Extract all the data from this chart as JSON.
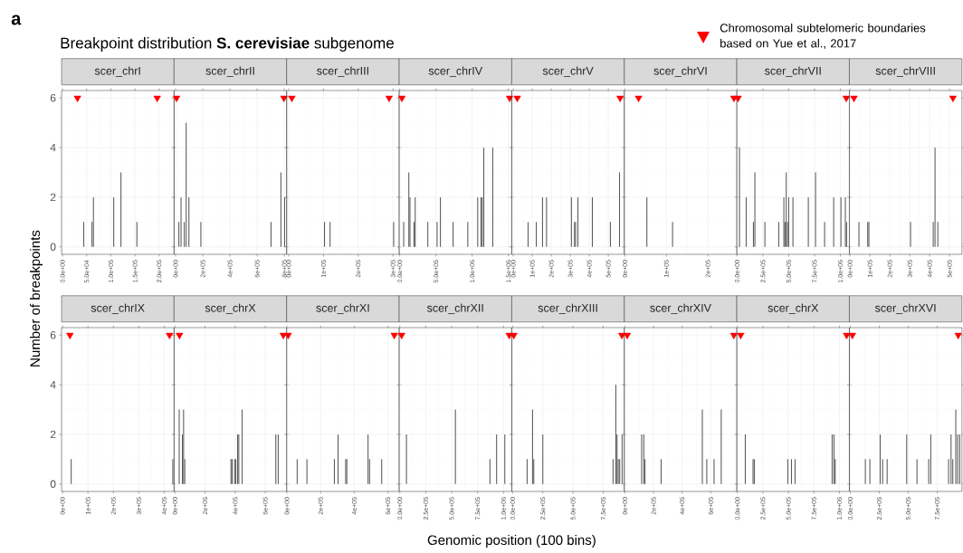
{
  "chart_data": [
    {
      "type": "bar",
      "title": "scer_chrI",
      "annotations": [
        "a",
        "Breakpoint distribution **S. cerevisiae** subgenome"
      ],
      "ylabel": "Number of breakpoints",
      "legend": "top right",
      "grid": true,
      "xlim": [
        -2000,
        231000
      ],
      "ylim": [
        -0.3,
        6.3
      ],
      "yticks": [
        0,
        2,
        4,
        6
      ],
      "xticks": [
        {
          "value": 0,
          "label": "0.0e+00"
        },
        {
          "value": 50000,
          "label": "5.0e+04"
        },
        {
          "value": 100000,
          "label": "1.0e+05"
        },
        {
          "value": 150000,
          "label": "1.5e+05"
        },
        {
          "value": 200000,
          "label": "2.0e+05"
        }
      ],
      "series": [
        {
          "color": "#595959",
          "x": [
            44000,
            61000,
            64000,
            106000,
            121000,
            154000
          ],
          "values": [
            1,
            1,
            2,
            2,
            3,
            1
          ]
        },
        {
          "type": "scatter",
          "name": "Chromosomal subtelomeric boundaries based on Yue et al., 2017",
          "marker": "triangle",
          "color": "#ff0000",
          "x": [
            31000,
            196000
          ],
          "values": [
            6,
            6
          ]
        }
      ]
    },
    {
      "type": "bar",
      "title": "scer_chrII",
      "tick_labels": "x",
      "grid": true,
      "xlim": [
        -11000,
        817000
      ],
      "ylim": [
        -0.3,
        6.3
      ],
      "yticks": [
        0,
        2,
        4,
        6
      ],
      "xticks": [
        {
          "value": 0,
          "label": "0e+00"
        },
        {
          "value": 200000,
          "label": "2e+05"
        },
        {
          "value": 400000,
          "label": "4e+05"
        },
        {
          "value": 600000,
          "label": "6e+05"
        },
        {
          "value": 800000,
          "label": "8e+05"
        }
      ],
      "series": [
        {
          "color": "#595959",
          "x": [
            24000,
            40000,
            64000,
            78000,
            98000,
            186000,
            702000,
            775000,
            802000
          ],
          "values": [
            1,
            2,
            1,
            5,
            2,
            1,
            1,
            3,
            2
          ]
        },
        {
          "type": "scatter",
          "marker": "triangle",
          "color": "#ff0000",
          "x": [
            7000,
            797000
          ],
          "values": [
            6,
            6
          ]
        }
      ]
    },
    {
      "type": "bar",
      "title": "scer_chrIII",
      "tick_labels": "x",
      "grid": true,
      "xlim": [
        -6000,
        318000
      ],
      "ylim": [
        -0.3,
        6.3
      ],
      "yticks": [
        0,
        2,
        4,
        6
      ],
      "xticks": [
        {
          "value": 0,
          "label": "0e+00"
        },
        {
          "value": 100000,
          "label": "1e+05"
        },
        {
          "value": 200000,
          "label": "2e+05"
        },
        {
          "value": 300000,
          "label": "3e+05"
        }
      ],
      "series": [
        {
          "color": "#595959",
          "x": [
            103000,
            119000,
            302000
          ],
          "values": [
            1,
            1,
            1
          ]
        },
        {
          "type": "scatter",
          "marker": "triangle",
          "color": "#ff0000",
          "x": [
            9000,
            289000
          ],
          "values": [
            6,
            6
          ]
        }
      ]
    },
    {
      "type": "bar",
      "title": "scer_chrIV",
      "tick_labels": "x",
      "grid": true,
      "xlim": [
        -8000,
        1546000
      ],
      "ylim": [
        -0.3,
        6.3
      ],
      "yticks": [
        0,
        2,
        4,
        6
      ],
      "xticks": [
        {
          "value": 0,
          "label": "0.0e+00"
        },
        {
          "value": 500000,
          "label": "5.0e+05"
        },
        {
          "value": 1000000,
          "label": "1.0e+06"
        },
        {
          "value": 1500000,
          "label": "1.5e+06"
        }
      ],
      "series": [
        {
          "color": "#595959",
          "x": [
            54000,
            125000,
            141000,
            197000,
            213000,
            387000,
            515000,
            561000,
            736000,
            939000,
            1076000,
            1122000,
            1139000,
            1160000,
            1284000
          ],
          "values": [
            1,
            3,
            2,
            1,
            2,
            1,
            1,
            2,
            1,
            1,
            2,
            2,
            2,
            4,
            4
          ]
        },
        {
          "type": "scatter",
          "marker": "triangle",
          "color": "#ff0000",
          "x": [
            29000,
            1517000
          ],
          "values": [
            6,
            6
          ]
        }
      ]
    },
    {
      "type": "bar",
      "title": "scer_chrV",
      "tick_labels": "x",
      "grid": true,
      "xlim": [
        -8000,
        584000
      ],
      "ylim": [
        -0.3,
        6.3
      ],
      "yticks": [
        0,
        2,
        4,
        6
      ],
      "xticks": [
        {
          "value": 0,
          "label": "0e+00"
        },
        {
          "value": 100000,
          "label": "1e+05"
        },
        {
          "value": 200000,
          "label": "2e+05"
        },
        {
          "value": 300000,
          "label": "3e+05"
        },
        {
          "value": 400000,
          "label": "4e+05"
        },
        {
          "value": 500000,
          "label": "5e+05"
        }
      ],
      "series": [
        {
          "color": "#595959",
          "x": [
            78000,
            121000,
            154000,
            175000,
            306000,
            322000,
            328000,
            340000,
            416000,
            511000,
            559000
          ],
          "values": [
            1,
            1,
            2,
            2,
            2,
            1,
            1,
            2,
            2,
            1,
            3
          ]
        },
        {
          "type": "scatter",
          "marker": "triangle",
          "color": "#ff0000",
          "x": [
            21000,
            562000
          ],
          "values": [
            6,
            6
          ]
        }
      ]
    },
    {
      "type": "bar",
      "title": "scer_chrVI",
      "tick_labels": "x",
      "grid": true,
      "xlim": [
        -1500,
        270000
      ],
      "ylim": [
        -0.3,
        6.3
      ],
      "yticks": [
        0,
        2,
        4,
        6
      ],
      "xticks": [
        {
          "value": 0,
          "label": "0e+00"
        },
        {
          "value": 100000,
          "label": "1e+05"
        },
        {
          "value": 200000,
          "label": "2e+05"
        }
      ],
      "series": [
        {
          "color": "#595959",
          "x": [
            53000,
            115000
          ],
          "values": [
            2,
            1
          ]
        },
        {
          "type": "scatter",
          "marker": "triangle",
          "color": "#ff0000",
          "x": [
            33000,
            263000
          ],
          "values": [
            6,
            6
          ]
        }
      ]
    },
    {
      "type": "bar",
      "title": "scer_chrVII",
      "tick_labels": "x",
      "grid": true,
      "xlim": [
        -3000,
        1088000
      ],
      "ylim": [
        -0.3,
        6.3
      ],
      "yticks": [
        0,
        2,
        4,
        6
      ],
      "xticks": [
        {
          "value": 0,
          "label": "0.0e+00"
        },
        {
          "value": 250000,
          "label": "2.5e+05"
        },
        {
          "value": 500000,
          "label": "5.0e+05"
        },
        {
          "value": 750000,
          "label": "7.5e+05"
        },
        {
          "value": 1000000,
          "label": "1.0e+06"
        }
      ],
      "series": [
        {
          "color": "#595959",
          "x": [
            23000,
            88000,
            158000,
            172000,
            269000,
            403000,
            453000,
            464000,
            476000,
            488000,
            500000,
            541000,
            690000,
            760000,
            848000,
            936000,
            1006000,
            1049000,
            1061000
          ],
          "values": [
            4,
            2,
            1,
            3,
            1,
            1,
            2,
            1,
            3,
            1,
            2,
            2,
            2,
            3,
            1,
            2,
            2,
            2,
            1
          ]
        },
        {
          "type": "scatter",
          "marker": "triangle",
          "color": "#ff0000",
          "x": [
            9000,
            1058000
          ],
          "values": [
            6,
            6
          ]
        }
      ]
    },
    {
      "type": "bar",
      "title": "scer_chrVIII",
      "tick_labels": "x",
      "grid": true,
      "xlim": [
        -3000,
        562000
      ],
      "ylim": [
        -0.3,
        6.3
      ],
      "yticks": [
        0,
        2,
        4,
        6
      ],
      "xticks": [
        {
          "value": 0,
          "label": "0e+00"
        },
        {
          "value": 100000,
          "label": "1e+05"
        },
        {
          "value": 200000,
          "label": "2e+05"
        },
        {
          "value": 300000,
          "label": "3e+05"
        },
        {
          "value": 400000,
          "label": "4e+05"
        },
        {
          "value": 500000,
          "label": "5e+05"
        }
      ],
      "series": [
        {
          "color": "#595959",
          "x": [
            45000,
            89000,
            95000,
            304000,
            418000,
            427000,
            441000
          ],
          "values": [
            1,
            1,
            1,
            1,
            1,
            4,
            1
          ]
        },
        {
          "type": "scatter",
          "marker": "triangle",
          "color": "#ff0000",
          "x": [
            20000,
            517000
          ],
          "values": [
            6,
            6
          ]
        }
      ]
    },
    {
      "type": "bar",
      "title": "scer_chrIX",
      "grid": true,
      "xlim": [
        -4000,
        439000
      ],
      "ylim": [
        -0.3,
        6.3
      ],
      "yticks": [
        0,
        2,
        4,
        6
      ],
      "xticks": [
        {
          "value": 0,
          "label": "0e+00"
        },
        {
          "value": 100000,
          "label": "1e+05"
        },
        {
          "value": 200000,
          "label": "2e+05"
        },
        {
          "value": 300000,
          "label": "3e+05"
        },
        {
          "value": 400000,
          "label": "4e+05"
        }
      ],
      "series": [
        {
          "color": "#595959",
          "x": [
            34000,
            434000
          ],
          "values": [
            1,
            1
          ]
        },
        {
          "type": "scatter",
          "marker": "triangle",
          "color": "#ff0000",
          "x": [
            29000,
            421000
          ],
          "values": [
            6,
            6
          ]
        }
      ]
    },
    {
      "type": "bar",
      "title": "scer_chrX",
      "tick_labels": "x",
      "grid": true,
      "xlim": [
        -6000,
        742000
      ],
      "ylim": [
        -0.3,
        6.3
      ],
      "yticks": [
        0,
        2,
        4,
        6
      ],
      "xticks": [
        {
          "value": 0,
          "label": "0e+00"
        },
        {
          "value": 200000,
          "label": "2e+05"
        },
        {
          "value": 400000,
          "label": "4e+05"
        },
        {
          "value": 600000,
          "label": "6e+05"
        }
      ],
      "series": [
        {
          "color": "#595959",
          "x": [
            28000,
            49000,
            57000,
            65000,
            372000,
            380000,
            396000,
            404000,
            416000,
            424000,
            446000,
            670000,
            686000
          ],
          "values": [
            3,
            2,
            3,
            1,
            1,
            1,
            1,
            1,
            2,
            2,
            3,
            2,
            2
          ]
        },
        {
          "type": "scatter",
          "marker": "triangle",
          "color": "#ff0000",
          "x": [
            30000,
            720000
          ],
          "values": [
            6,
            6
          ]
        }
      ]
    },
    {
      "type": "bar",
      "title": "scer_chrXI",
      "tick_labels": "x",
      "grid": true,
      "xlim": [
        -1600,
        667000
      ],
      "ylim": [
        -0.3,
        6.3
      ],
      "yticks": [
        0,
        2,
        4,
        6
      ],
      "xticks": [
        {
          "value": 0,
          "label": "0e+00"
        },
        {
          "value": 200000,
          "label": "2e+05"
        },
        {
          "value": 400000,
          "label": "4e+05"
        },
        {
          "value": 600000,
          "label": "6e+05"
        }
      ],
      "series": [
        {
          "color": "#595959",
          "x": [
            61000,
            119000,
            282000,
            304000,
            349000,
            356000,
            482000,
            491000,
            563000
          ],
          "values": [
            1,
            1,
            1,
            2,
            1,
            1,
            2,
            1,
            1
          ]
        },
        {
          "type": "scatter",
          "marker": "triangle",
          "color": "#ff0000",
          "x": [
            7500,
            638000
          ],
          "values": [
            6,
            6
          ]
        }
      ]
    },
    {
      "type": "bar",
      "title": "scer_chrXII",
      "xlabel": "Genomic position (100 bins)",
      "tick_labels": "x",
      "grid": true,
      "xlim": [
        -6000,
        1079000
      ],
      "ylim": [
        -0.3,
        6.3
      ],
      "yticks": [
        0,
        2,
        4,
        6
      ],
      "xticks": [
        {
          "value": 0,
          "label": "0.0e+00"
        },
        {
          "value": 250000,
          "label": "2.5e+05"
        },
        {
          "value": 500000,
          "label": "5.0e+05"
        },
        {
          "value": 750000,
          "label": "7.5e+05"
        },
        {
          "value": 1000000,
          "label": "1.0e+06"
        }
      ],
      "series": [
        {
          "color": "#595959",
          "x": [
            64000,
            536000,
            869000,
            933000,
            1012000
          ],
          "values": [
            2,
            3,
            1,
            2,
            2
          ]
        },
        {
          "type": "scatter",
          "marker": "triangle",
          "color": "#ff0000",
          "x": [
            17500,
            1055000
          ],
          "values": [
            6,
            6
          ]
        }
      ]
    },
    {
      "type": "bar",
      "title": "scer_chrXIII",
      "tick_labels": "x",
      "grid": true,
      "xlim": [
        -7500,
        925000
      ],
      "ylim": [
        -0.3,
        6.3
      ],
      "yticks": [
        0,
        2,
        4,
        6
      ],
      "xticks": [
        {
          "value": 0,
          "label": "0.0e+00"
        },
        {
          "value": 250000,
          "label": "2.5e+05"
        },
        {
          "value": 500000,
          "label": "5.0e+05"
        },
        {
          "value": 750000,
          "label": "7.5e+05"
        }
      ],
      "series": [
        {
          "color": "#595959",
          "x": [
            120000,
            165000,
            175000,
            250000,
            832000,
            855000,
            865000,
            875000,
            887000,
            907000
          ],
          "values": [
            1,
            3,
            1,
            2,
            1,
            4,
            2,
            1,
            1,
            2
          ]
        },
        {
          "type": "scatter",
          "marker": "triangle",
          "color": "#ff0000",
          "x": [
            10000,
            905000
          ],
          "values": [
            6,
            6
          ]
        }
      ]
    },
    {
      "type": "bar",
      "title": "scer_chrXIV",
      "tick_labels": "x",
      "grid": true,
      "xlim": [
        -4400,
        782000
      ],
      "ylim": [
        -0.3,
        6.3
      ],
      "yticks": [
        0,
        2,
        4,
        6
      ],
      "xticks": [
        {
          "value": 0,
          "label": "0e+00"
        },
        {
          "value": 200000,
          "label": "2e+05"
        },
        {
          "value": 400000,
          "label": "4e+05"
        },
        {
          "value": 600000,
          "label": "6e+05"
        }
      ],
      "series": [
        {
          "color": "#595959",
          "x": [
            117000,
            132000,
            140000,
            253000,
            541000,
            572000,
            623000,
            673000
          ],
          "values": [
            2,
            2,
            1,
            1,
            3,
            1,
            1,
            3
          ]
        },
        {
          "type": "scatter",
          "marker": "triangle",
          "color": "#ff0000",
          "x": [
            16000,
            761000
          ],
          "values": [
            6,
            6
          ]
        }
      ]
    },
    {
      "type": "bar",
      "title": "scer_chrX",
      "tick_labels": "x",
      "grid": true,
      "xlim": [
        -6000,
        1098000
      ],
      "ylim": [
        -0.3,
        6.3
      ],
      "yticks": [
        0,
        2,
        4,
        6
      ],
      "xticks": [
        {
          "value": 0,
          "label": "0.0e+00"
        },
        {
          "value": 250000,
          "label": "2.5e+05"
        },
        {
          "value": 500000,
          "label": "5.0e+05"
        },
        {
          "value": 750000,
          "label": "7.5e+05"
        },
        {
          "value": 1000000,
          "label": "1.0e+06"
        }
      ],
      "series": [
        {
          "color": "#595959",
          "x": [
            77000,
            153000,
            166000,
            494000,
            530000,
            565000,
            929000,
            947000,
            959000
          ],
          "values": [
            2,
            1,
            1,
            1,
            1,
            1,
            2,
            2,
            1
          ]
        },
        {
          "type": "scatter",
          "marker": "triangle",
          "color": "#ff0000",
          "x": [
            32000,
            1071000
          ],
          "values": [
            6,
            6
          ]
        }
      ]
    },
    {
      "type": "bar",
      "title": "scer_chrXVI",
      "tick_labels": "x",
      "grid": true,
      "xlim": [
        -8000,
        964000
      ],
      "ylim": [
        -0.3,
        6.3
      ],
      "yticks": [
        0,
        2,
        4,
        6
      ],
      "xticks": [
        {
          "value": 0,
          "label": "0.0e+00"
        },
        {
          "value": 250000,
          "label": "2.5e+05"
        },
        {
          "value": 500000,
          "label": "5.0e+05"
        },
        {
          "value": 750000,
          "label": "7.5e+05"
        }
      ],
      "series": [
        {
          "color": "#595959",
          "x": [
            130000,
            169000,
            258000,
            279000,
            318000,
            487000,
            576000,
            677000,
            695000,
            849000,
            870000,
            885000,
            911000,
            927000,
            945000
          ],
          "values": [
            1,
            1,
            2,
            1,
            1,
            2,
            1,
            1,
            2,
            1,
            2,
            1,
            3,
            2,
            2
          ]
        },
        {
          "type": "scatter",
          "marker": "triangle",
          "color": "#ff0000",
          "x": [
            18000,
            932000
          ],
          "values": [
            6,
            6
          ]
        }
      ]
    }
  ]
}
